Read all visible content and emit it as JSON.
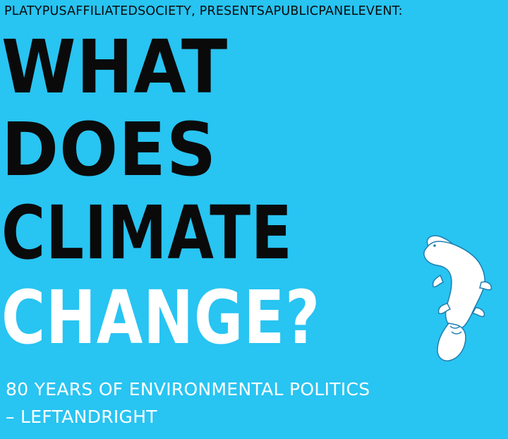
{
  "header": {
    "presenter_line": "PLATYPUSAFFILIATEDSOCIETY, PRESENTSAPUBLICPANELEVENT:"
  },
  "title": {
    "line1": "WHAT",
    "line2": "DOES",
    "line3": "CLIMATE",
    "line4": "CHANGE?"
  },
  "subtitle": {
    "line1": "80 YEARS OF ENVIRONMENTAL POLITICS",
    "line2": "– LEFTANDRIGHT"
  },
  "logo": {
    "icon": "platypus-icon"
  },
  "colors": {
    "background": "#28c4f2",
    "title_dark": "#0a0a0a",
    "title_accent": "#ffffff"
  }
}
